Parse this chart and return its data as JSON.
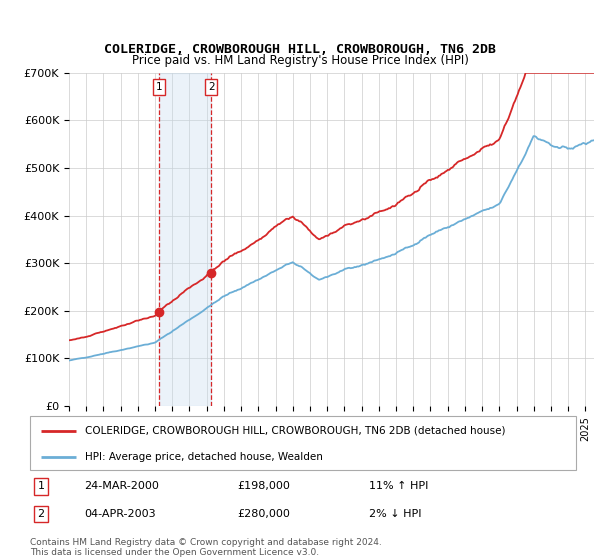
{
  "title": "COLERIDGE, CROWBOROUGH HILL, CROWBOROUGH, TN6 2DB",
  "subtitle": "Price paid vs. HM Land Registry's House Price Index (HPI)",
  "legend_line1": "COLERIDGE, CROWBOROUGH HILL, CROWBOROUGH, TN6 2DB (detached house)",
  "legend_line2": "HPI: Average price, detached house, Wealden",
  "sale1_date": "24-MAR-2000",
  "sale1_price": "£198,000",
  "sale1_hpi": "11% ↑ HPI",
  "sale2_date": "04-APR-2003",
  "sale2_price": "£280,000",
  "sale2_hpi": "2% ↓ HPI",
  "footer": "Contains HM Land Registry data © Crown copyright and database right 2024.\nThis data is licensed under the Open Government Licence v3.0.",
  "hpi_color": "#6baed6",
  "sale_color": "#d62728",
  "vline_color": "#d62728",
  "shade_color": "#c6dbef",
  "bg_color": "#ffffff",
  "grid_color": "#cccccc",
  "ylim": [
    0,
    700000
  ],
  "yticks": [
    0,
    100000,
    200000,
    300000,
    400000,
    500000,
    600000,
    700000
  ],
  "sale1_year": 2000.23,
  "sale2_year": 2003.26,
  "xmin": 1995.0,
  "xmax": 2025.5,
  "sale1_val": 198000,
  "sale2_val": 280000,
  "hpi_breakpoints": [
    [
      1995.0,
      95000
    ],
    [
      2000.0,
      133000
    ],
    [
      2004.0,
      230000
    ],
    [
      2008.0,
      302000
    ],
    [
      2009.5,
      266000
    ],
    [
      2014.0,
      320000
    ],
    [
      2016.0,
      360000
    ],
    [
      2020.0,
      423000
    ],
    [
      2022.0,
      567000
    ],
    [
      2023.5,
      538000
    ],
    [
      2025.5,
      555000
    ]
  ]
}
